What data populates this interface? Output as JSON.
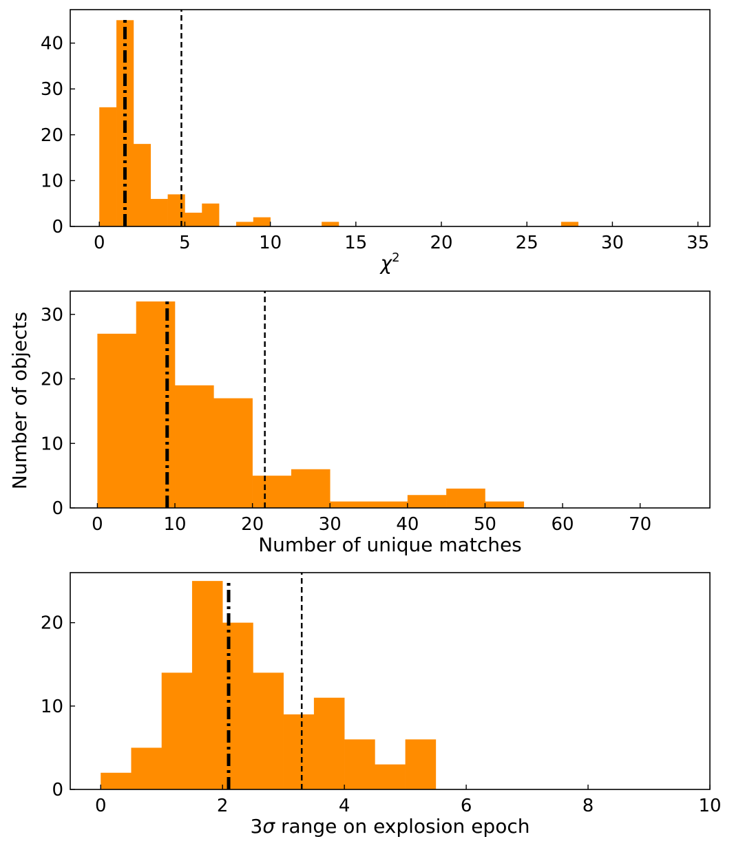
{
  "colors": {
    "bar": "#ff8c00",
    "median_line": "#000000",
    "threshold_line": "#000000",
    "axes": "#000000"
  },
  "figure": {
    "ylabel": "Number of objects"
  },
  "chart_data": [
    {
      "type": "bar",
      "title": "",
      "xlabel_parts": {
        "symbol": "χ",
        "sup": "2"
      },
      "xlabel": "χ²",
      "ylabel": "",
      "xlim": [
        -1.7,
        35.7
      ],
      "ylim": [
        0,
        47.3
      ],
      "xticks": [
        0,
        5,
        10,
        15,
        20,
        25,
        30,
        35
      ],
      "xtick_labels": [
        "0",
        "5",
        "10",
        "15",
        "20",
        "25",
        "30",
        "35"
      ],
      "yticks": [
        0,
        10,
        20,
        30,
        40
      ],
      "ytick_labels": [
        "0",
        "10",
        "20",
        "30",
        "40"
      ],
      "bin_edges": [
        0,
        1,
        2,
        3,
        4,
        5,
        6,
        7,
        8,
        9,
        10,
        11,
        12,
        13,
        14,
        15,
        16,
        17,
        18,
        19,
        20,
        21,
        22,
        23,
        24,
        25,
        26,
        27,
        28,
        29,
        30,
        31,
        32,
        33,
        34
      ],
      "counts": [
        26,
        45,
        18,
        6,
        7,
        3,
        5,
        0,
        1,
        2,
        0,
        0,
        0,
        1,
        0,
        0,
        0,
        0,
        0,
        0,
        0,
        0,
        0,
        0,
        0,
        0,
        0,
        1,
        0,
        0,
        0,
        0,
        0,
        0
      ],
      "median_line_x": 1.5,
      "threshold_line_x": 4.8
    },
    {
      "type": "bar",
      "title": "",
      "xlabel": "Number of unique matches",
      "ylabel": "Number of objects",
      "xlim": [
        -3.5,
        79
      ],
      "ylim": [
        0,
        33.6
      ],
      "xticks": [
        0,
        10,
        20,
        30,
        40,
        50,
        60,
        70
      ],
      "xtick_labels": [
        "0",
        "10",
        "20",
        "30",
        "40",
        "50",
        "60",
        "70"
      ],
      "yticks": [
        0,
        10,
        20,
        30
      ],
      "ytick_labels": [
        "0",
        "10",
        "20",
        "30"
      ],
      "bin_edges": [
        0,
        5,
        10,
        15,
        20,
        25,
        30,
        35,
        40,
        45,
        50,
        55,
        60,
        65,
        70,
        75
      ],
      "counts": [
        27,
        32,
        19,
        17,
        5,
        6,
        1,
        1,
        2,
        3,
        1,
        0,
        0,
        0,
        0
      ],
      "median_line_x": 9,
      "threshold_line_x": 21.6
    },
    {
      "type": "bar",
      "title": "",
      "xlabel_parts": {
        "pre": "3",
        "symbol": "σ",
        "post": " range on explosion epoch"
      },
      "xlabel": "3σ range on explosion epoch",
      "ylabel": "",
      "xlim": [
        -0.5,
        10
      ],
      "ylim": [
        0,
        26
      ],
      "xticks": [
        0,
        2,
        4,
        6,
        8,
        10
      ],
      "xtick_labels": [
        "0",
        "2",
        "4",
        "6",
        "8",
        "10"
      ],
      "yticks": [
        0,
        10,
        20
      ],
      "ytick_labels": [
        "0",
        "10",
        "20"
      ],
      "bin_edges": [
        0,
        0.5,
        1,
        1.5,
        2,
        2.5,
        3,
        3.5,
        4,
        4.5,
        5,
        5.5,
        6,
        6.5,
        7,
        7.5,
        8,
        8.5,
        9,
        9.5
      ],
      "counts": [
        2,
        5,
        14,
        25,
        20,
        14,
        9,
        11,
        6,
        3,
        6,
        0,
        0,
        0,
        0,
        0,
        0,
        0,
        0
      ],
      "median_line_x": 2.1,
      "threshold_line_x": 3.3
    }
  ]
}
